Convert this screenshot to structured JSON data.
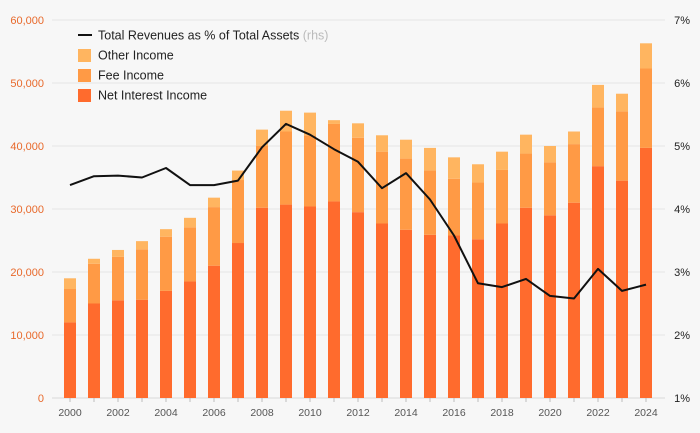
{
  "chart_data": {
    "type": "bar",
    "stacked": true,
    "x": [
      2000,
      2001,
      2002,
      2003,
      2004,
      2005,
      2006,
      2007,
      2008,
      2009,
      2010,
      2011,
      2012,
      2013,
      2014,
      2015,
      2016,
      2017,
      2018,
      2019,
      2020,
      2021,
      2022,
      2023,
      2024
    ],
    "x_tick_labels": [
      "2000",
      "2002",
      "2004",
      "2006",
      "2008",
      "2010",
      "2012",
      "2014",
      "2016",
      "2018",
      "2020",
      "2022",
      "2024"
    ],
    "x_tick_values": [
      2000,
      2002,
      2004,
      2006,
      2008,
      2010,
      2012,
      2014,
      2016,
      2018,
      2020,
      2022,
      2024
    ],
    "series": [
      {
        "name": "Net Interest Income",
        "type": "bar",
        "color": "#ff6b2d",
        "values": [
          12000,
          15000,
          15500,
          15600,
          17000,
          18500,
          21000,
          24600,
          30200,
          30700,
          30400,
          31200,
          29500,
          27700,
          26700,
          25900,
          25800,
          25200,
          27700,
          30200,
          29000,
          31000,
          36800,
          34500,
          39700
        ]
      },
      {
        "name": "Fee Income",
        "type": "bar",
        "color": "#ff9a45",
        "values": [
          5300,
          6300,
          6900,
          8000,
          8600,
          8600,
          9300,
          10000,
          9800,
          11600,
          11300,
          12300,
          11800,
          11400,
          11300,
          10200,
          9000,
          9000,
          8500,
          8600,
          8400,
          9300,
          9300,
          11000,
          12600
        ]
      },
      {
        "name": "Other Income",
        "type": "bar",
        "color": "#ffb560",
        "values": [
          1700,
          800,
          1100,
          1300,
          1200,
          1500,
          1500,
          1500,
          2600,
          3300,
          3600,
          600,
          2300,
          2600,
          3000,
          3600,
          3400,
          2900,
          2900,
          3000,
          2600,
          2000,
          3600,
          2800,
          4000
        ]
      },
      {
        "name": "Total Revenues as % of Total Assets",
        "type": "line",
        "axis": "rhs",
        "color": "#111111",
        "values": [
          4.38,
          4.52,
          4.53,
          4.5,
          4.65,
          4.38,
          4.38,
          4.45,
          4.98,
          5.35,
          5.18,
          4.95,
          4.75,
          4.33,
          4.57,
          4.15,
          3.58,
          2.82,
          2.76,
          2.89,
          2.62,
          2.58,
          3.05,
          2.7,
          2.8
        ]
      }
    ],
    "y_left": {
      "min": 0,
      "max": 60000,
      "ticks": [
        0,
        10000,
        20000,
        30000,
        40000,
        50000,
        60000
      ],
      "tick_labels": [
        "0",
        "10,000",
        "20,000",
        "30,000",
        "40,000",
        "50,000",
        "60,000"
      ]
    },
    "y_right": {
      "min": 1,
      "max": 7,
      "ticks": [
        1,
        2,
        3,
        4,
        5,
        6,
        7
      ],
      "tick_labels": [
        "1%",
        "2%",
        "3%",
        "4%",
        "5%",
        "6%",
        "7%"
      ]
    },
    "grid": true,
    "legend": {
      "placement": "top-left",
      "items": [
        {
          "label": "Total Revenues as % of Total Assets",
          "suffix": "(rhs)",
          "kind": "line",
          "color": "#111111"
        },
        {
          "label": "Other Income",
          "suffix": "",
          "kind": "box",
          "color": "#ffb560"
        },
        {
          "label": "Fee Income",
          "suffix": "",
          "kind": "box",
          "color": "#ff9a45"
        },
        {
          "label": "Net Interest Income",
          "suffix": "",
          "kind": "box",
          "color": "#ff6b2d"
        }
      ]
    },
    "colors": {
      "left_axis": "#e8692b",
      "right_axis": "#222222",
      "gridline": "#e6e6e6",
      "background": "#f6f6f6"
    }
  }
}
